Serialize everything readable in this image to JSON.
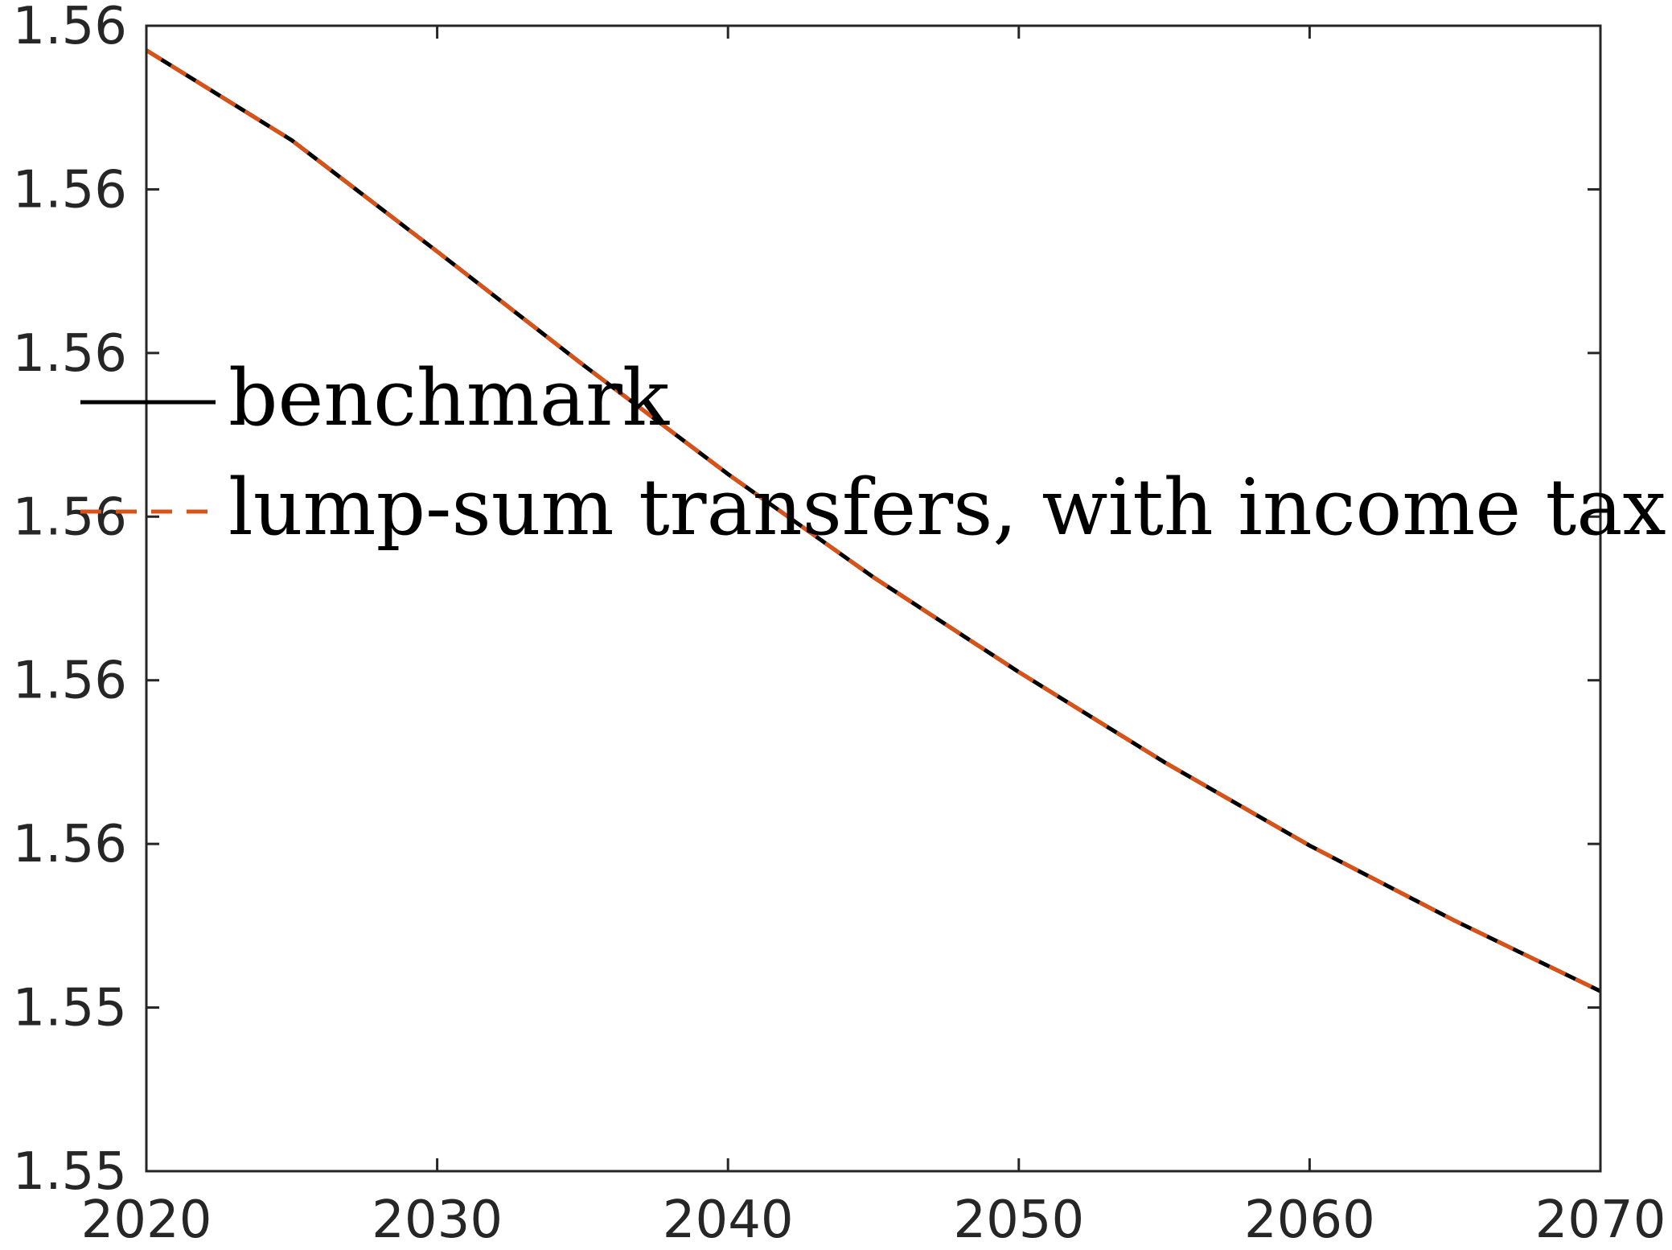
{
  "chart_data": {
    "type": "line",
    "title": "",
    "xlabel": "",
    "ylabel": "",
    "xlim": [
      2020,
      2070
    ],
    "ylim": [
      1.55,
      1.557
    ],
    "x_ticks": [
      2020,
      2030,
      2040,
      2050,
      2060,
      2070
    ],
    "x_tick_labels": [
      "2020",
      "2030",
      "2040",
      "2050",
      "2060",
      "2070"
    ],
    "y_ticks": [
      1.55,
      1.551,
      1.552,
      1.553,
      1.554,
      1.555,
      1.556,
      1.557
    ],
    "y_tick_labels": [
      "1.55",
      "1.55",
      "1.56",
      "1.56",
      "1.56",
      "1.56",
      "1.56",
      "1.56"
    ],
    "grid": false,
    "legend_position": "center-left",
    "x": [
      2020,
      2025,
      2030,
      2035,
      2040,
      2045,
      2050,
      2055,
      2060,
      2065,
      2070
    ],
    "series": [
      {
        "name": "benchmark",
        "color": "#000000",
        "dash": "solid",
        "values": [
          1.55685,
          1.5563,
          1.55562,
          1.55493,
          1.55426,
          1.55363,
          1.55305,
          1.5525,
          1.55199,
          1.55153,
          1.5511
        ]
      },
      {
        "name": "lump-sum transfers, with income tax",
        "color": "#D95319",
        "dash": "dashed",
        "values": [
          1.55685,
          1.5563,
          1.55562,
          1.55493,
          1.55426,
          1.55363,
          1.55305,
          1.5525,
          1.55199,
          1.55153,
          1.5511
        ]
      }
    ]
  }
}
